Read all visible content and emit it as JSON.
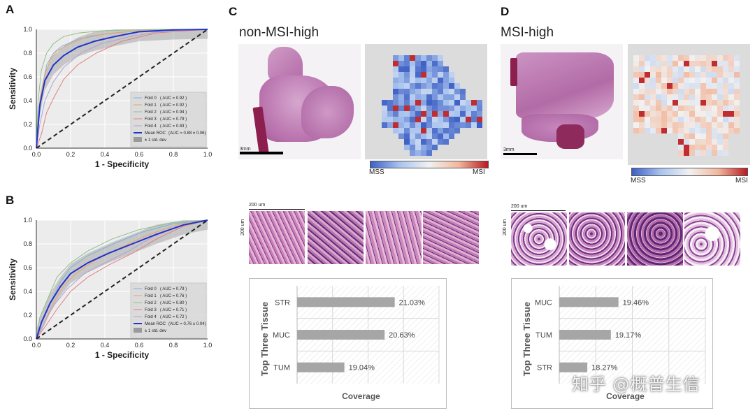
{
  "panels": {
    "A": "A",
    "B": "B",
    "C": "C",
    "D": "D"
  },
  "titles": {
    "non_msi": "non-MSI-high",
    "msi": "MSI-high"
  },
  "scale": {
    "mm": "3mm",
    "um": "200 um"
  },
  "colorbar": {
    "low": "MSS",
    "high": "MSI",
    "colors": [
      "#3d5fc4",
      "#aac4ef",
      "#f1f1f1",
      "#f2b79c",
      "#b81a22"
    ]
  },
  "chart_data": [
    {
      "type": "line",
      "id": "roc-a",
      "xlabel": "1 - Specificity",
      "ylabel": "Sensitivity",
      "xlim": [
        0,
        1
      ],
      "ylim": [
        0,
        1
      ],
      "ticks": [
        "0.0",
        "0.2",
        "0.4",
        "0.6",
        "0.8",
        "1.0"
      ],
      "legend_placement": "bottom-right",
      "std_label": "± 1 std. dev",
      "series": [
        {
          "name": "Fold 0",
          "auc": "( AUC = 0.92 )",
          "color": "#7fb2d8",
          "points": [
            [
              0,
              0
            ],
            [
              0.02,
              0.3
            ],
            [
              0.04,
              0.55
            ],
            [
              0.06,
              0.7
            ],
            [
              0.1,
              0.8
            ],
            [
              0.15,
              0.86
            ],
            [
              0.25,
              0.92
            ],
            [
              0.4,
              0.96
            ],
            [
              0.6,
              0.99
            ],
            [
              1,
              1
            ]
          ]
        },
        {
          "name": "Fold 1",
          "auc": "( AUC = 0.92 )",
          "color": "#e7a46a",
          "points": [
            [
              0,
              0
            ],
            [
              0.02,
              0.4
            ],
            [
              0.05,
              0.62
            ],
            [
              0.08,
              0.74
            ],
            [
              0.12,
              0.82
            ],
            [
              0.2,
              0.88
            ],
            [
              0.3,
              0.94
            ],
            [
              0.45,
              0.97
            ],
            [
              0.7,
              1
            ],
            [
              1,
              1
            ]
          ]
        },
        {
          "name": "Fold 2",
          "auc": "( AUC = 0.94 )",
          "color": "#8fbf8a",
          "points": [
            [
              0,
              0
            ],
            [
              0.01,
              0.4
            ],
            [
              0.03,
              0.66
            ],
            [
              0.06,
              0.8
            ],
            [
              0.1,
              0.88
            ],
            [
              0.16,
              0.94
            ],
            [
              0.25,
              0.97
            ],
            [
              0.4,
              0.99
            ],
            [
              0.7,
              1
            ],
            [
              1,
              1
            ]
          ]
        },
        {
          "name": "Fold 3",
          "auc": "( AUC = 0.79 )",
          "color": "#e08080",
          "points": [
            [
              0,
              0
            ],
            [
              0.03,
              0.12
            ],
            [
              0.06,
              0.3
            ],
            [
              0.1,
              0.42
            ],
            [
              0.16,
              0.58
            ],
            [
              0.24,
              0.7
            ],
            [
              0.35,
              0.8
            ],
            [
              0.5,
              0.9
            ],
            [
              0.7,
              0.97
            ],
            [
              1,
              1
            ]
          ]
        },
        {
          "name": "Fold 4",
          "auc": "( AUC = 0.83 )",
          "color": "#b3a0d6",
          "points": [
            [
              0,
              0
            ],
            [
              0.02,
              0.2
            ],
            [
              0.05,
              0.4
            ],
            [
              0.1,
              0.56
            ],
            [
              0.16,
              0.68
            ],
            [
              0.26,
              0.8
            ],
            [
              0.38,
              0.88
            ],
            [
              0.55,
              0.94
            ],
            [
              0.75,
              0.99
            ],
            [
              1,
              1
            ]
          ]
        },
        {
          "name": "Mean ROC",
          "auc": "(AUC = 0.88 ± 0.06)",
          "color": "#2233cc",
          "points": [
            [
              0,
              0
            ],
            [
              0.02,
              0.36
            ],
            [
              0.05,
              0.57
            ],
            [
              0.1,
              0.7
            ],
            [
              0.16,
              0.78
            ],
            [
              0.24,
              0.85
            ],
            [
              0.34,
              0.9
            ],
            [
              0.46,
              0.94
            ],
            [
              0.6,
              0.98
            ],
            [
              0.8,
              0.995
            ],
            [
              1,
              1
            ]
          ]
        },
        {
          "name": "Chance",
          "color": "#222222",
          "points": [
            [
              0,
              0
            ],
            [
              1,
              1
            ]
          ]
        }
      ]
    },
    {
      "type": "line",
      "id": "roc-b",
      "xlabel": "1 - Specificity",
      "ylabel": "Sensitivity",
      "xlim": [
        0,
        1
      ],
      "ylim": [
        0,
        1
      ],
      "ticks": [
        "0.0",
        "0.2",
        "0.4",
        "0.6",
        "0.8",
        "1.0"
      ],
      "legend_placement": "bottom-right",
      "std_label": "± 1 std. dev",
      "series": [
        {
          "name": "Fold 0",
          "auc": "( AUC = 0.79 )",
          "color": "#7fb2d8",
          "points": [
            [
              0,
              0
            ],
            [
              0.03,
              0.15
            ],
            [
              0.08,
              0.3
            ],
            [
              0.14,
              0.48
            ],
            [
              0.2,
              0.6
            ],
            [
              0.3,
              0.7
            ],
            [
              0.45,
              0.8
            ],
            [
              0.62,
              0.9
            ],
            [
              0.8,
              0.97
            ],
            [
              1,
              1
            ]
          ]
        },
        {
          "name": "Fold 1",
          "auc": "( AUC = 0.76 )",
          "color": "#e7a46a",
          "points": [
            [
              0,
              0
            ],
            [
              0.04,
              0.12
            ],
            [
              0.1,
              0.3
            ],
            [
              0.16,
              0.45
            ],
            [
              0.24,
              0.56
            ],
            [
              0.34,
              0.66
            ],
            [
              0.48,
              0.76
            ],
            [
              0.64,
              0.87
            ],
            [
              0.82,
              0.96
            ],
            [
              1,
              1
            ]
          ]
        },
        {
          "name": "Fold 2",
          "auc": "( AUC = 0.80 )",
          "color": "#8fbf8a",
          "points": [
            [
              0,
              0
            ],
            [
              0.02,
              0.18
            ],
            [
              0.07,
              0.35
            ],
            [
              0.12,
              0.52
            ],
            [
              0.2,
              0.64
            ],
            [
              0.3,
              0.74
            ],
            [
              0.44,
              0.84
            ],
            [
              0.6,
              0.92
            ],
            [
              0.8,
              0.98
            ],
            [
              1,
              1
            ]
          ]
        },
        {
          "name": "Fold 3",
          "auc": "( AUC = 0.71 )",
          "color": "#e08080",
          "points": [
            [
              0,
              0
            ],
            [
              0.05,
              0.1
            ],
            [
              0.12,
              0.25
            ],
            [
              0.2,
              0.4
            ],
            [
              0.3,
              0.52
            ],
            [
              0.42,
              0.62
            ],
            [
              0.56,
              0.72
            ],
            [
              0.7,
              0.84
            ],
            [
              0.86,
              0.95
            ],
            [
              1,
              1
            ]
          ]
        },
        {
          "name": "Fold 4",
          "auc": "( AUC = 0.72 )",
          "color": "#b3a0d6",
          "points": [
            [
              0,
              0
            ],
            [
              0.04,
              0.12
            ],
            [
              0.1,
              0.28
            ],
            [
              0.18,
              0.42
            ],
            [
              0.28,
              0.55
            ],
            [
              0.4,
              0.64
            ],
            [
              0.54,
              0.74
            ],
            [
              0.68,
              0.86
            ],
            [
              0.85,
              0.96
            ],
            [
              1,
              1
            ]
          ]
        },
        {
          "name": "Mean ROC",
          "auc": "(AUC = 0.76 ± 0.04)",
          "color": "#2233cc",
          "points": [
            [
              0,
              0
            ],
            [
              0.03,
              0.14
            ],
            [
              0.08,
              0.3
            ],
            [
              0.14,
              0.44
            ],
            [
              0.2,
              0.55
            ],
            [
              0.3,
              0.64
            ],
            [
              0.42,
              0.72
            ],
            [
              0.56,
              0.8
            ],
            [
              0.7,
              0.88
            ],
            [
              0.86,
              0.96
            ],
            [
              1,
              1
            ]
          ]
        },
        {
          "name": "Chance",
          "color": "#222222",
          "points": [
            [
              0,
              0
            ],
            [
              1,
              1
            ]
          ]
        }
      ]
    },
    {
      "type": "bar",
      "id": "bar-c",
      "orientation": "horizontal",
      "ylabel": "Top Three Tissue",
      "xlabel": "Coverage",
      "categories": [
        "STR",
        "MUC",
        "TUM"
      ],
      "values": [
        21.03,
        20.63,
        19.04
      ],
      "labels": [
        "21.03%",
        "20.63%",
        "19.04%"
      ],
      "bar_color": "#a6a6a6"
    },
    {
      "type": "bar",
      "id": "bar-d",
      "orientation": "horizontal",
      "ylabel": "Top Three Tissue",
      "xlabel": "Coverage",
      "categories": [
        "MUC",
        "TUM",
        "STR"
      ],
      "values": [
        19.46,
        19.17,
        18.27
      ],
      "labels": [
        "19.46%",
        "19.17%",
        "18.27%"
      ],
      "bar_color": "#a6a6a6"
    }
  ],
  "watermark": "知乎 @概普生信"
}
